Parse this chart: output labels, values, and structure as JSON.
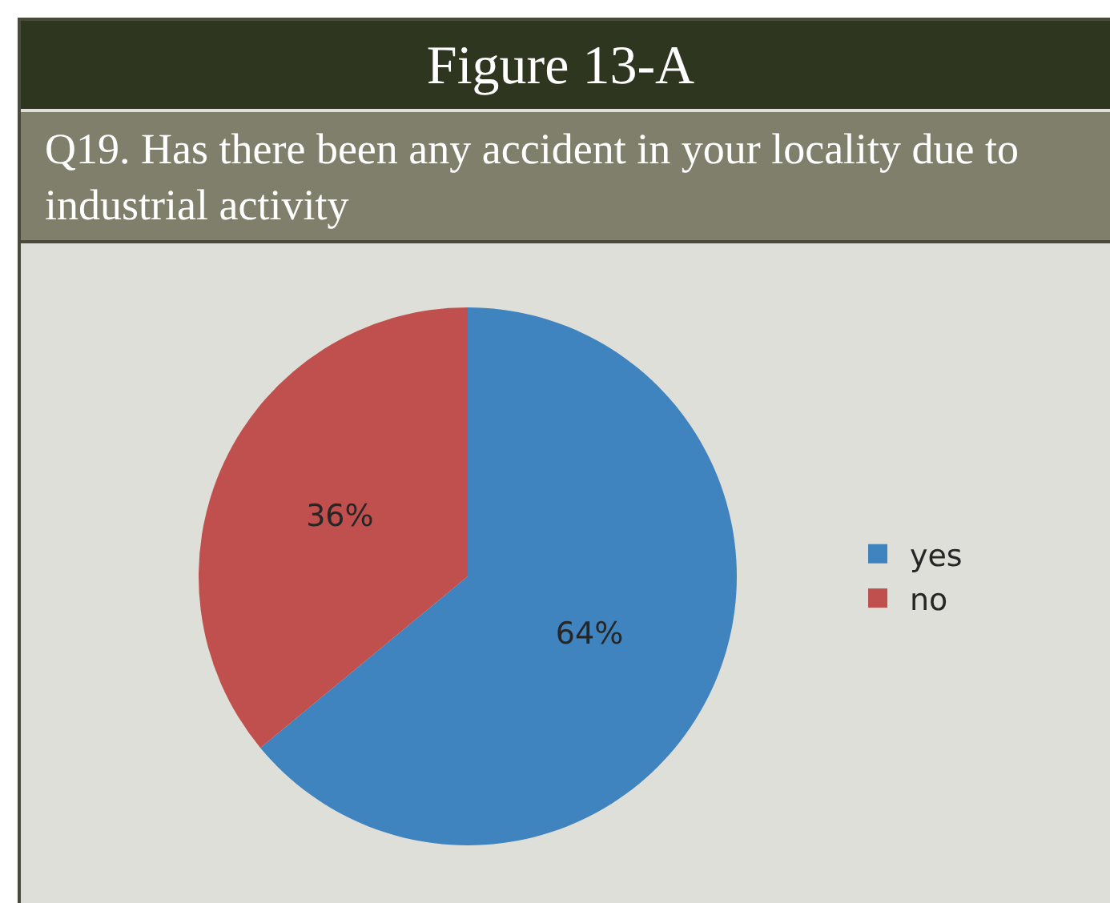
{
  "chart_data": {
    "type": "pie",
    "title": "Figure 13-A",
    "subtitle": "Q19. Has there been any accident in your locality due to industrial activity",
    "categories": [
      "yes",
      "no"
    ],
    "values": [
      64,
      36
    ],
    "colors": [
      "#3f83bf",
      "#c0504d"
    ],
    "value_labels": [
      "64%",
      "36%"
    ],
    "legend": "right"
  }
}
